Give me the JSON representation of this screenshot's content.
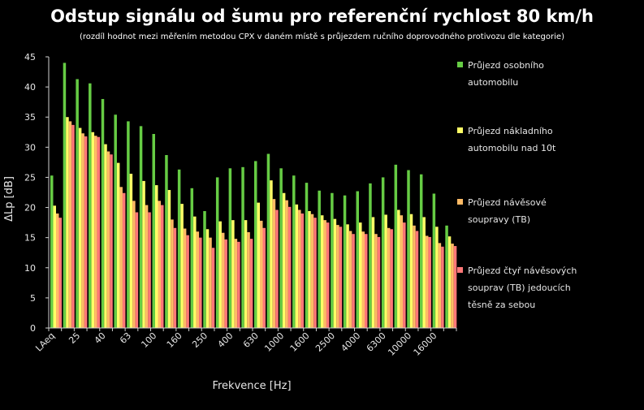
{
  "chart_data": {
    "type": "bar",
    "title": "Odstup signálu od šumu pro referenční rychlost 80 km/h",
    "subtitle": "(rozdíl hodnot mezi měřením metodou CPX v daném místě s průjezdem ručního doprovodného protivozu dle kategorie)",
    "xlabel": "Frekvence [Hz]",
    "ylabel": "ΔLp [dB]",
    "ylim": [
      0,
      45
    ],
    "yticks": [
      0,
      5,
      10,
      15,
      20,
      25,
      30,
      35,
      40,
      45
    ],
    "categories": [
      "LAeq",
      "20",
      "25",
      "31.5",
      "40",
      "50",
      "63",
      "80",
      "100",
      "125",
      "160",
      "200",
      "250",
      "315",
      "400",
      "500",
      "630",
      "800",
      "1000",
      "1250",
      "1600",
      "2000",
      "2500",
      "3150",
      "4000",
      "5000",
      "6300",
      "8000",
      "10000",
      "12500",
      "16000",
      "20000"
    ],
    "tick_labels": [
      "LAeq",
      "",
      "25",
      "",
      "40",
      "",
      "63",
      "",
      "100",
      "",
      "160",
      "",
      "250",
      "",
      "400",
      "",
      "630",
      "",
      "1000",
      "",
      "1600",
      "",
      "2500",
      "",
      "4000",
      "",
      "6300",
      "",
      "10000",
      "",
      "16000",
      ""
    ],
    "series": [
      {
        "name": "Průjezd osobního automobilu",
        "color": "#66cc44",
        "values": [
          25.3,
          44.0,
          41.3,
          40.6,
          38.0,
          35.4,
          34.3,
          33.5,
          32.2,
          28.7,
          26.3,
          23.2,
          19.4,
          25.0,
          26.5,
          26.7,
          27.7,
          28.9,
          26.5,
          25.3,
          24.1,
          22.8,
          22.4,
          22.0,
          22.7,
          24.0,
          25.0,
          27.1,
          26.2,
          25.5,
          22.3,
          17.0
        ]
      },
      {
        "name": "Průjezd nákladního automobilu nad 10t",
        "color": "#ffff66",
        "values": [
          20.3,
          35.0,
          33.2,
          32.5,
          30.5,
          27.4,
          25.6,
          24.4,
          23.7,
          22.9,
          20.6,
          18.5,
          16.4,
          17.7,
          17.9,
          17.9,
          20.8,
          24.5,
          22.4,
          20.5,
          19.4,
          18.7,
          18.1,
          17.2,
          17.5,
          18.4,
          18.8,
          19.6,
          18.9,
          18.4,
          16.8,
          15.2
        ]
      },
      {
        "name": "Průjezd návěsové soupravy (TB)",
        "color": "#ffbb66",
        "values": [
          19.0,
          34.3,
          32.3,
          31.9,
          29.3,
          23.4,
          21.1,
          20.4,
          21.1,
          18.0,
          16.5,
          16.0,
          15.0,
          15.8,
          14.8,
          15.9,
          17.8,
          21.4,
          21.2,
          19.6,
          18.9,
          17.9,
          17.1,
          16.1,
          16.0,
          15.6,
          16.6,
          18.7,
          17.0,
          15.3,
          14.1,
          14.0
        ]
      },
      {
        "name": "Průjezd čtyř návěsových souprav (TB) jedoucích těsně za sebou",
        "color": "#ff7777",
        "values": [
          18.3,
          33.7,
          31.8,
          31.7,
          28.8,
          22.4,
          19.2,
          19.2,
          20.4,
          16.6,
          15.4,
          15.0,
          13.3,
          14.7,
          14.3,
          14.8,
          16.6,
          19.6,
          20.1,
          19.0,
          18.3,
          17.5,
          16.8,
          15.6,
          15.6,
          15.1,
          16.4,
          17.5,
          16.1,
          15.1,
          13.5,
          13.6
        ]
      }
    ],
    "legend_position": "right",
    "grid": false
  },
  "legend": [
    {
      "lines": [
        "Průjezd osobního",
        "automobilu"
      ]
    },
    {
      "lines": [
        "Průjezd nákladního",
        "automobilu nad 10t"
      ]
    },
    {
      "lines": [
        "Průjezd návěsové",
        "soupravy (TB)"
      ]
    },
    {
      "lines": [
        "Průjezd čtyř návěsových",
        "souprav (TB) jedoucích",
        "těsně za sebou"
      ]
    }
  ]
}
